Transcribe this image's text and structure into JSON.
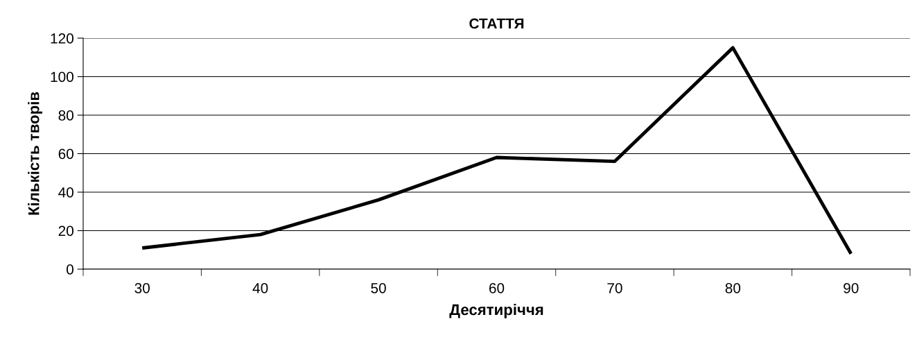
{
  "chart_data": {
    "type": "line",
    "title": "СТАТТЯ",
    "xlabel": "Десятиріччя",
    "ylabel": "Кількість творів",
    "categories": [
      "30",
      "40",
      "50",
      "60",
      "70",
      "80",
      "90"
    ],
    "series": [
      {
        "color": "#000000",
        "values": [
          11,
          18,
          36,
          58,
          56,
          115,
          8
        ]
      }
    ],
    "ylim": [
      0,
      120
    ],
    "yticks": [
      0,
      20,
      40,
      60,
      80,
      100,
      120
    ],
    "grid": "y",
    "legend": false,
    "marker": "none",
    "line_style": "solid"
  }
}
